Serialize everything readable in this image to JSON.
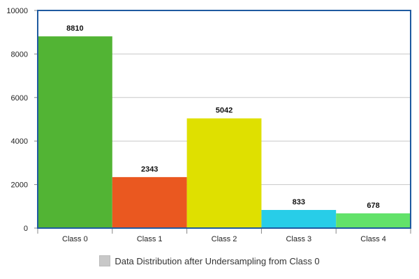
{
  "chart_data": {
    "type": "bar",
    "categories": [
      "Class 0",
      "Class 1",
      "Class 2",
      "Class 3",
      "Class 4"
    ],
    "values": [
      8810,
      2343,
      5042,
      833,
      678
    ],
    "data_labels": [
      "8810",
      "2343",
      "5042",
      "833",
      "678"
    ],
    "colors": [
      "#52b434",
      "#ea5820",
      "#dfe000",
      "#28cde8",
      "#62e26a"
    ],
    "ylim": [
      0,
      10000
    ],
    "yticks": [
      0,
      2000,
      4000,
      6000,
      8000,
      10000
    ],
    "ytick_labels": [
      "0",
      "2000",
      "4000",
      "6000",
      "8000",
      "10000"
    ],
    "grid": true,
    "legend": {
      "label": "Data Distribution after Undersampling from Class 0",
      "placement": "bottom-center",
      "swatch_color": "#c8c8c8"
    },
    "plot_border_color": "#1f5aa0"
  }
}
